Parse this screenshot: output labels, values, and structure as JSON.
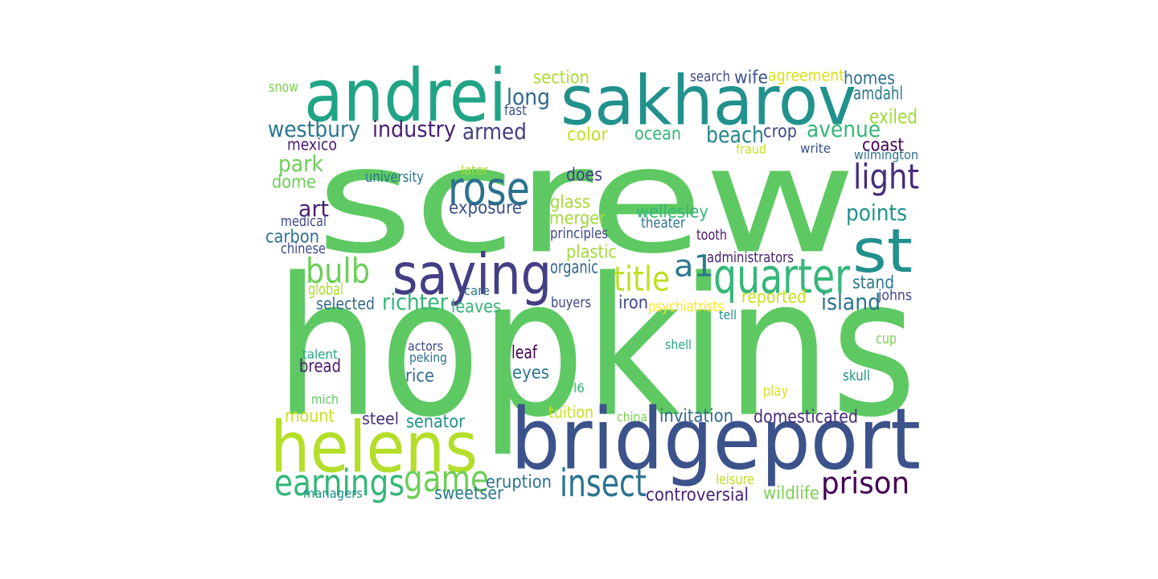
{
  "words": [
    {
      "text": "screw",
      "color": "#5ec962"
    },
    {
      "text": "hopkins",
      "color": "#5ec962"
    },
    {
      "text": "sakharov",
      "color": "#21918c"
    },
    {
      "text": "andrei",
      "color": "#20a486"
    },
    {
      "text": "bridgeport",
      "color": "#3b528b"
    },
    {
      "text": "helens",
      "color": "#b5de2b"
    },
    {
      "text": "st",
      "color": "#21918c"
    },
    {
      "text": "saying",
      "color": "#433e85"
    },
    {
      "text": "rose",
      "color": "#2c728e"
    },
    {
      "text": "quarter",
      "color": "#35b779"
    },
    {
      "text": "game",
      "color": "#6ece58"
    },
    {
      "text": "earnings",
      "color": "#35b779"
    },
    {
      "text": "insect",
      "color": "#2c728e"
    },
    {
      "text": "prison",
      "color": "#440154"
    },
    {
      "text": "bulb",
      "color": "#6ece58"
    },
    {
      "text": "title",
      "color": "#bddf26"
    },
    {
      "text": "a1",
      "color": "#2a788e"
    },
    {
      "text": "light",
      "color": "#472d7b"
    },
    {
      "text": "long",
      "color": "#31688e"
    },
    {
      "text": "industry",
      "color": "#482173"
    },
    {
      "text": "armed",
      "color": "#433e85"
    },
    {
      "text": "westbury",
      "color": "#2a788e"
    },
    {
      "text": "section",
      "color": "#addc30"
    },
    {
      "text": "fast",
      "color": "#3b528b"
    },
    {
      "text": "search",
      "color": "#3e4989"
    },
    {
      "text": "wife",
      "color": "#3b528b"
    },
    {
      "text": "agreement",
      "color": "#d8e219"
    },
    {
      "text": "homes",
      "color": "#2c728e"
    },
    {
      "text": "amdahl",
      "color": "#2a788e"
    },
    {
      "text": "exiled",
      "color": "#a0da39"
    },
    {
      "text": "snow",
      "color": "#7ad151"
    },
    {
      "text": "mexico",
      "color": "#481a6c"
    },
    {
      "text": "color",
      "color": "#c0df25"
    },
    {
      "text": "ocean",
      "color": "#35b779"
    },
    {
      "text": "beach",
      "color": "#25858e"
    },
    {
      "text": "crop",
      "color": "#3e4989"
    },
    {
      "text": "avenue",
      "color": "#35b779"
    },
    {
      "text": "coast",
      "color": "#440154"
    },
    {
      "text": "fraud",
      "color": "#c8e020"
    },
    {
      "text": "write",
      "color": "#3b528b"
    },
    {
      "text": "wilmington",
      "color": "#2c728e"
    },
    {
      "text": "park",
      "color": "#6ece58"
    },
    {
      "text": "university",
      "color": "#2c728e"
    },
    {
      "text": "later",
      "color": "#addc30"
    },
    {
      "text": "dome",
      "color": "#6ece58"
    },
    {
      "text": "does",
      "color": "#433e85"
    },
    {
      "text": "glass",
      "color": "#a5db36"
    },
    {
      "text": "art",
      "color": "#482173"
    },
    {
      "text": "exposure",
      "color": "#3b528b"
    },
    {
      "text": "merger",
      "color": "#a0da39"
    },
    {
      "text": "wellesley",
      "color": "#35b779"
    },
    {
      "text": "points",
      "color": "#21918c"
    },
    {
      "text": "medical",
      "color": "#3e4989"
    },
    {
      "text": "theater",
      "color": "#2c728e"
    },
    {
      "text": "carbon",
      "color": "#2c728e"
    },
    {
      "text": "principles",
      "color": "#3e4989"
    },
    {
      "text": "tooth",
      "color": "#481a6c"
    },
    {
      "text": "chinese",
      "color": "#3e4989"
    },
    {
      "text": "plastic",
      "color": "#a0da39"
    },
    {
      "text": "administrators",
      "color": "#482173"
    },
    {
      "text": "organic",
      "color": "#31688e"
    },
    {
      "text": "stand",
      "color": "#2a788e"
    },
    {
      "text": "global",
      "color": "#addc30"
    },
    {
      "text": "care",
      "color": "#2c728e"
    },
    {
      "text": "reported",
      "color": "#c8e020"
    },
    {
      "text": "island",
      "color": "#2c728e"
    },
    {
      "text": "selected",
      "color": "#31688e"
    },
    {
      "text": "richter",
      "color": "#35b779"
    },
    {
      "text": "leaves",
      "color": "#35b779"
    },
    {
      "text": "buyers",
      "color": "#3e4989"
    },
    {
      "text": "iron",
      "color": "#3e4989"
    },
    {
      "text": "psychiatrists",
      "color": "#fde725"
    },
    {
      "text": "johns",
      "color": "#3e4989"
    },
    {
      "text": "tell",
      "color": "#21918c"
    },
    {
      "text": "actors",
      "color": "#3e4989"
    },
    {
      "text": "peking",
      "color": "#2c728e"
    },
    {
      "text": "talent",
      "color": "#22a884"
    },
    {
      "text": "leaf",
      "color": "#440154"
    },
    {
      "text": "shell",
      "color": "#22a884"
    },
    {
      "text": "cup",
      "color": "#7ad151"
    },
    {
      "text": "bread",
      "color": "#481a6c"
    },
    {
      "text": "eyes",
      "color": "#2a788e"
    },
    {
      "text": "rice",
      "color": "#31688e"
    },
    {
      "text": "skull",
      "color": "#21918c"
    },
    {
      "text": "l6",
      "color": "#35b779"
    },
    {
      "text": "mich",
      "color": "#5ec962"
    },
    {
      "text": "play",
      "color": "#d8e219"
    },
    {
      "text": "mount",
      "color": "#c8e020"
    },
    {
      "text": "tuition",
      "color": "#c8e020"
    },
    {
      "text": "china",
      "color": "#7ad151"
    },
    {
      "text": "invitation",
      "color": "#31688e"
    },
    {
      "text": "domesticated",
      "color": "#472d7b"
    },
    {
      "text": "steel",
      "color": "#472d7b"
    },
    {
      "text": "senator",
      "color": "#21918c"
    },
    {
      "text": "eruption",
      "color": "#2c728e"
    },
    {
      "text": "leisure",
      "color": "#c0df25"
    },
    {
      "text": "sweetser",
      "color": "#2a788e"
    },
    {
      "text": "controversial",
      "color": "#482173"
    },
    {
      "text": "wildlife",
      "color": "#7ad151"
    },
    {
      "text": "managers",
      "color": "#21918c"
    }
  ]
}
